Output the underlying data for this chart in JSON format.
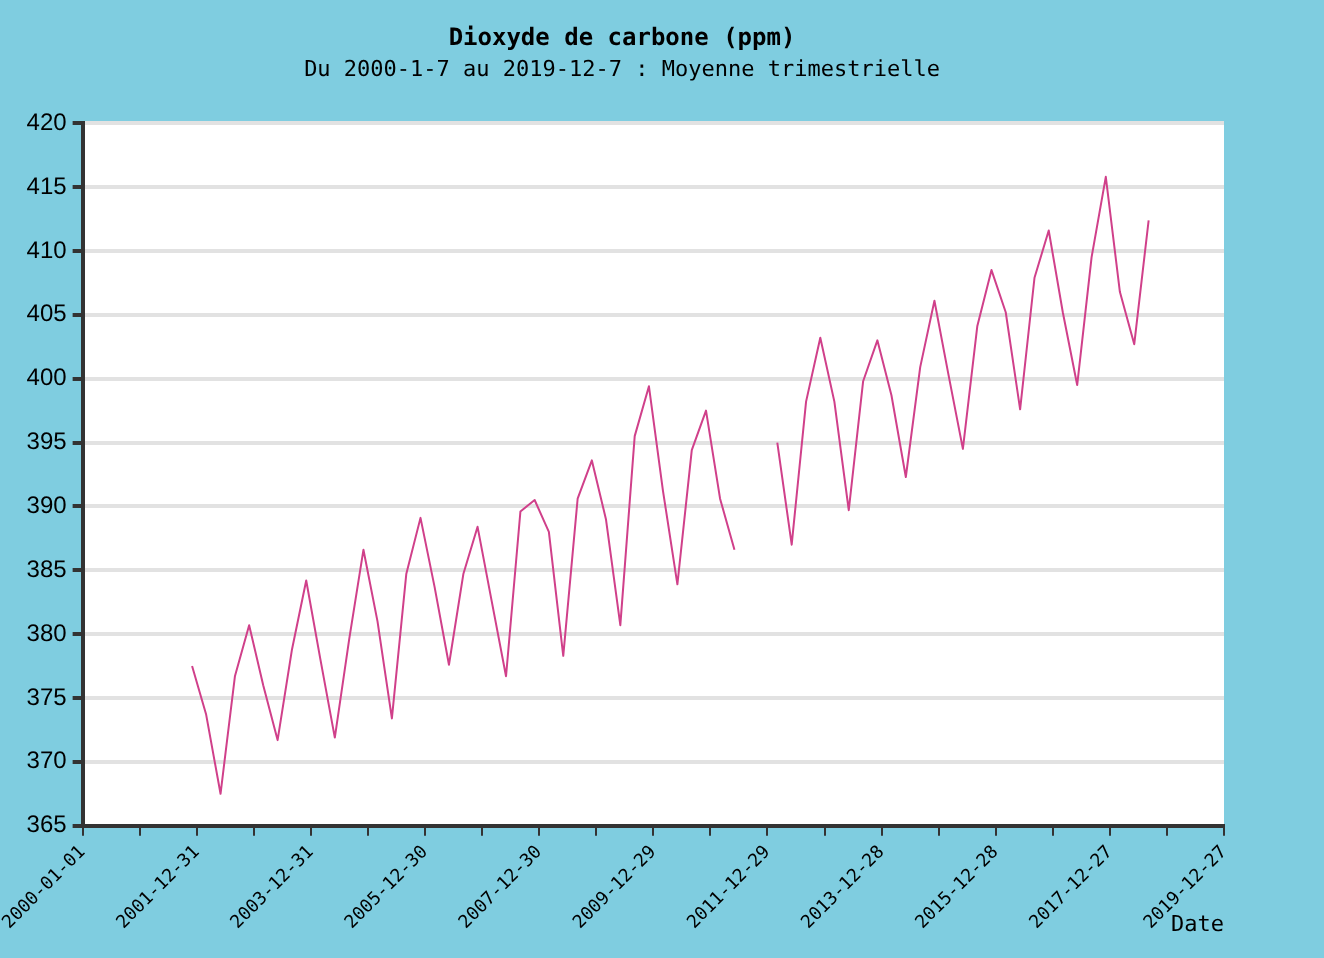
{
  "chart_data": {
    "type": "line",
    "title": "Dioxyde de carbone (ppm)",
    "subtitle": "Du 2000-1-7 au 2019-12-7 : Moyenne trimestrielle",
    "xlabel": "Date",
    "x": [
      "2001-12",
      "2002-03",
      "2002-06",
      "2002-09",
      "2002-12",
      "2003-03",
      "2003-06",
      "2003-09",
      "2003-12",
      "2004-03",
      "2004-06",
      "2004-09",
      "2004-12",
      "2005-03",
      "2005-06",
      "2005-09",
      "2005-12",
      "2006-03",
      "2006-06",
      "2006-09",
      "2006-12",
      "2007-03",
      "2007-06",
      "2007-09",
      "2007-12",
      "2008-03",
      "2008-06",
      "2008-09",
      "2008-12",
      "2009-03",
      "2009-06",
      "2009-09",
      "2009-12",
      "2010-03",
      "2010-06",
      "2010-09",
      "2010-12",
      "2011-03",
      "2011-06",
      "2011-09",
      "2011-12",
      "2012-03",
      "2012-06",
      "2012-09",
      "2012-12",
      "2013-03",
      "2013-06",
      "2013-09",
      "2013-12",
      "2014-03",
      "2014-06",
      "2014-09",
      "2014-12",
      "2015-03",
      "2015-06",
      "2015-09",
      "2015-12",
      "2016-03",
      "2016-06",
      "2016-09",
      "2016-12",
      "2017-03",
      "2017-06",
      "2017-09",
      "2017-12",
      "2018-03",
      "2018-06",
      "2018-09"
    ],
    "series": [
      {
        "color": "#d0408a",
        "values": [
          377.5,
          373.7,
          367.5,
          376.7,
          380.7,
          376,
          371.7,
          378.8,
          384.2,
          378,
          371.9,
          379.6,
          386.6,
          381,
          373.4,
          384.7,
          389.1,
          383.7,
          377.6,
          384.7,
          388.4,
          382.6,
          376.7,
          389.6,
          390.5,
          388,
          378.3,
          390.6,
          393.6,
          389,
          380.7,
          395.5,
          399.4,
          391.2,
          383.9,
          394.4,
          397.5,
          390.6,
          386.6,
          null,
          null,
          395,
          387,
          398.2,
          403.2,
          398.2,
          389.7,
          399.8,
          403,
          398.7,
          392.3,
          400.9,
          406.1,
          400.3,
          394.5,
          404.1,
          408.5,
          405.2,
          397.6,
          407.9,
          411.6,
          405.2,
          399.5,
          409.5,
          415.8,
          406.8,
          402.7,
          412.4
        ]
      }
    ],
    "xlim": [
      "2000-01-01",
      "2019-12-27"
    ],
    "xticks": [
      "2000-01-01",
      {
        "value": "2000-12-31",
        "label": null
      },
      "2001-12-31",
      {
        "value": "2002-12-31",
        "label": null
      },
      "2003-12-31",
      {
        "value": "2004-12-30",
        "label": null
      },
      "2005-12-30",
      {
        "value": "2006-12-30",
        "label": null
      },
      "2007-12-30",
      {
        "value": "2008-12-29",
        "label": null
      },
      "2009-12-29",
      {
        "value": "2010-12-29",
        "label": null
      },
      "2011-12-29",
      {
        "value": "2012-12-28",
        "label": null
      },
      "2013-12-28",
      {
        "value": "2014-12-28",
        "label": null
      },
      "2015-12-28",
      {
        "value": "2016-12-27",
        "label": null
      },
      "2017-12-27",
      {
        "value": "2018-12-27",
        "label": null
      },
      "2019-12-27"
    ],
    "ylim": [
      365,
      420
    ],
    "yticks": [
      365,
      370,
      375,
      380,
      385,
      390,
      395,
      400,
      405,
      410,
      415,
      420
    ],
    "grid": "y",
    "legend": false,
    "marker": "none",
    "line_style": "solid"
  }
}
